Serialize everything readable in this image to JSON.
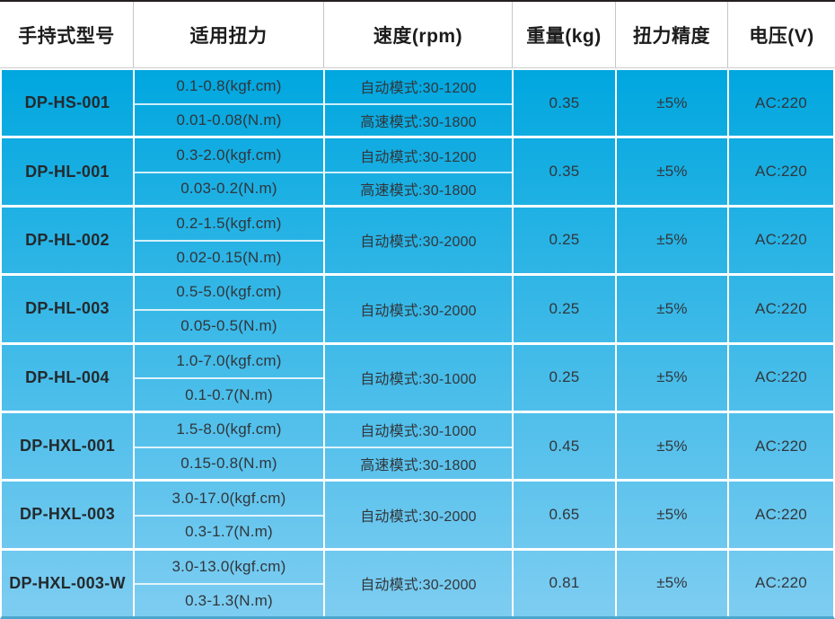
{
  "header": {
    "columns": [
      {
        "label": "手持式型号"
      },
      {
        "label": "适用扭力"
      },
      {
        "label": "速度(rpm)"
      },
      {
        "label": "重量(kg)"
      },
      {
        "label": "扭力精度"
      },
      {
        "label": "电压(V)"
      }
    ]
  },
  "rows": [
    {
      "model": "DP-HS-001",
      "torque_kgf_cm": "0.1-0.8(kgf.cm)",
      "torque_nm": "0.01-0.08(N.m)",
      "speed_modes": [
        "自动模式:30-1200",
        "高速模式:30-1800"
      ],
      "weight_kg": "0.35",
      "torque_accuracy": "±5%",
      "voltage": "AC:220"
    },
    {
      "model": "DP-HL-001",
      "torque_kgf_cm": "0.3-2.0(kgf.cm)",
      "torque_nm": "0.03-0.2(N.m)",
      "speed_modes": [
        "自动模式:30-1200",
        "高速模式:30-1800"
      ],
      "weight_kg": "0.35",
      "torque_accuracy": "±5%",
      "voltage": "AC:220"
    },
    {
      "model": "DP-HL-002",
      "torque_kgf_cm": "0.2-1.5(kgf.cm)",
      "torque_nm": "0.02-0.15(N.m)",
      "speed_modes": [
        "自动模式:30-2000"
      ],
      "weight_kg": "0.25",
      "torque_accuracy": "±5%",
      "voltage": "AC:220"
    },
    {
      "model": "DP-HL-003",
      "torque_kgf_cm": "0.5-5.0(kgf.cm)",
      "torque_nm": "0.05-0.5(N.m)",
      "speed_modes": [
        "自动模式:30-2000"
      ],
      "weight_kg": "0.25",
      "torque_accuracy": "±5%",
      "voltage": "AC:220"
    },
    {
      "model": "DP-HL-004",
      "torque_kgf_cm": "1.0-7.0(kgf.cm)",
      "torque_nm": "0.1-0.7(N.m)",
      "speed_modes": [
        "自动模式:30-1000"
      ],
      "weight_kg": "0.25",
      "torque_accuracy": "±5%",
      "voltage": "AC:220"
    },
    {
      "model": "DP-HXL-001",
      "torque_kgf_cm": "1.5-8.0(kgf.cm)",
      "torque_nm": "0.15-0.8(N.m)",
      "speed_modes": [
        "自动模式:30-1000",
        "高速模式:30-1800"
      ],
      "weight_kg": "0.45",
      "torque_accuracy": "±5%",
      "voltage": "AC:220"
    },
    {
      "model": "DP-HXL-003",
      "torque_kgf_cm": "3.0-17.0(kgf.cm)",
      "torque_nm": "0.3-1.7(N.m)",
      "speed_modes": [
        "自动模式:30-2000"
      ],
      "weight_kg": "0.65",
      "torque_accuracy": "±5%",
      "voltage": "AC:220"
    },
    {
      "model": "DP-HXL-003-W",
      "torque_kgf_cm": "3.0-13.0(kgf.cm)",
      "torque_nm": "0.3-1.3(N.m)",
      "speed_modes": [
        "自动模式:30-2000"
      ],
      "weight_kg": "0.81",
      "torque_accuracy": "±5%",
      "voltage": "AC:220"
    }
  ],
  "colors": {
    "body_gradient_top": "#00a7df",
    "body_gradient_bottom": "#7ecdf1",
    "grid_line": "#ffffff",
    "header_text": "#1c1c1c",
    "body_text": "#31363b",
    "top_border": "#231f20"
  }
}
